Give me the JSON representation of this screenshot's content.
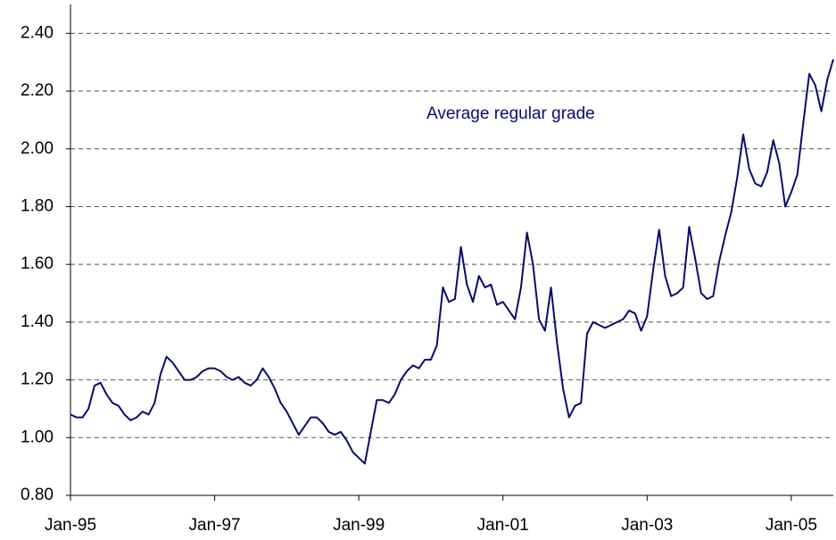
{
  "chart_data": {
    "type": "line",
    "annotation": "Average regular grade",
    "x": [
      "1995-01",
      "1995-02",
      "1995-03",
      "1995-04",
      "1995-05",
      "1995-06",
      "1995-07",
      "1995-08",
      "1995-09",
      "1995-10",
      "1995-11",
      "1995-12",
      "1996-01",
      "1996-02",
      "1996-03",
      "1996-04",
      "1996-05",
      "1996-06",
      "1996-07",
      "1996-08",
      "1996-09",
      "1996-10",
      "1996-11",
      "1996-12",
      "1997-01",
      "1997-02",
      "1997-03",
      "1997-04",
      "1997-05",
      "1997-06",
      "1997-07",
      "1997-08",
      "1997-09",
      "1997-10",
      "1997-11",
      "1997-12",
      "1998-01",
      "1998-02",
      "1998-03",
      "1998-04",
      "1998-05",
      "1998-06",
      "1998-07",
      "1998-08",
      "1998-09",
      "1998-10",
      "1998-11",
      "1998-12",
      "1999-01",
      "1999-02",
      "1999-03",
      "1999-04",
      "1999-05",
      "1999-06",
      "1999-07",
      "1999-08",
      "1999-09",
      "1999-10",
      "1999-11",
      "1999-12",
      "2000-01",
      "2000-02",
      "2000-03",
      "2000-04",
      "2000-05",
      "2000-06",
      "2000-07",
      "2000-08",
      "2000-09",
      "2000-10",
      "2000-11",
      "2000-12",
      "2001-01",
      "2001-02",
      "2001-03",
      "2001-04",
      "2001-05",
      "2001-06",
      "2001-07",
      "2001-08",
      "2001-09",
      "2001-10",
      "2001-11",
      "2001-12",
      "2002-01",
      "2002-02",
      "2002-03",
      "2002-04",
      "2002-05",
      "2002-06",
      "2002-07",
      "2002-08",
      "2002-09",
      "2002-10",
      "2002-11",
      "2002-12",
      "2003-01",
      "2003-02",
      "2003-03",
      "2003-04",
      "2003-05",
      "2003-06",
      "2003-07",
      "2003-08",
      "2003-09",
      "2003-10",
      "2003-11",
      "2003-12",
      "2004-01",
      "2004-02",
      "2004-03",
      "2004-04",
      "2004-05",
      "2004-06",
      "2004-07",
      "2004-08",
      "2004-09",
      "2004-10",
      "2004-11",
      "2004-12",
      "2005-01",
      "2005-02",
      "2005-03",
      "2005-04",
      "2005-05",
      "2005-06",
      "2005-07",
      "2005-08"
    ],
    "series": [
      {
        "color": "#0a0a6e",
        "values": [
          1.08,
          1.07,
          1.07,
          1.1,
          1.18,
          1.19,
          1.15,
          1.12,
          1.11,
          1.08,
          1.06,
          1.07,
          1.09,
          1.08,
          1.12,
          1.22,
          1.28,
          1.26,
          1.23,
          1.2,
          1.2,
          1.21,
          1.23,
          1.24,
          1.24,
          1.23,
          1.21,
          1.2,
          1.21,
          1.19,
          1.18,
          1.2,
          1.24,
          1.21,
          1.17,
          1.12,
          1.09,
          1.05,
          1.01,
          1.04,
          1.07,
          1.07,
          1.05,
          1.02,
          1.01,
          1.02,
          0.99,
          0.95,
          0.93,
          0.91,
          1.02,
          1.13,
          1.13,
          1.12,
          1.15,
          1.2,
          1.23,
          1.25,
          1.24,
          1.27,
          1.27,
          1.32,
          1.52,
          1.47,
          1.48,
          1.66,
          1.53,
          1.47,
          1.56,
          1.52,
          1.53,
          1.46,
          1.47,
          1.44,
          1.41,
          1.52,
          1.71,
          1.6,
          1.41,
          1.37,
          1.52,
          1.33,
          1.17,
          1.07,
          1.11,
          1.12,
          1.36,
          1.4,
          1.39,
          1.38,
          1.39,
          1.4,
          1.41,
          1.44,
          1.43,
          1.37,
          1.42,
          1.58,
          1.72,
          1.56,
          1.49,
          1.5,
          1.52,
          1.73,
          1.62,
          1.5,
          1.48,
          1.49,
          1.61,
          1.7,
          1.78,
          1.9,
          2.05,
          1.93,
          1.88,
          1.87,
          1.92,
          2.03,
          1.95,
          1.8,
          1.85,
          1.91,
          2.09,
          2.26,
          2.22,
          2.13,
          2.24,
          2.31
        ]
      }
    ],
    "xlim": [
      "1995-01",
      "2005-08"
    ],
    "xticks": [
      {
        "value": "1995-01",
        "label": "Jan-95"
      },
      {
        "value": "1997-01",
        "label": "Jan-97"
      },
      {
        "value": "1999-01",
        "label": "Jan-99"
      },
      {
        "value": "2001-01",
        "label": "Jan-01"
      },
      {
        "value": "2003-01",
        "label": "Jan-03"
      },
      {
        "value": "2005-01",
        "label": "Jan-05"
      }
    ],
    "ylim": [
      0.8,
      2.5
    ],
    "yticks": [
      {
        "value": 0.8,
        "label": "0.80"
      },
      {
        "value": 1.0,
        "label": "1.00"
      },
      {
        "value": 1.2,
        "label": "1.20"
      },
      {
        "value": 1.4,
        "label": "1.40"
      },
      {
        "value": 1.6,
        "label": "1.60"
      },
      {
        "value": 1.8,
        "label": "1.80"
      },
      {
        "value": 2.0,
        "label": "2.00"
      },
      {
        "value": 2.2,
        "label": "2.20"
      },
      {
        "value": 2.4,
        "label": "2.40"
      }
    ],
    "grid": true
  }
}
